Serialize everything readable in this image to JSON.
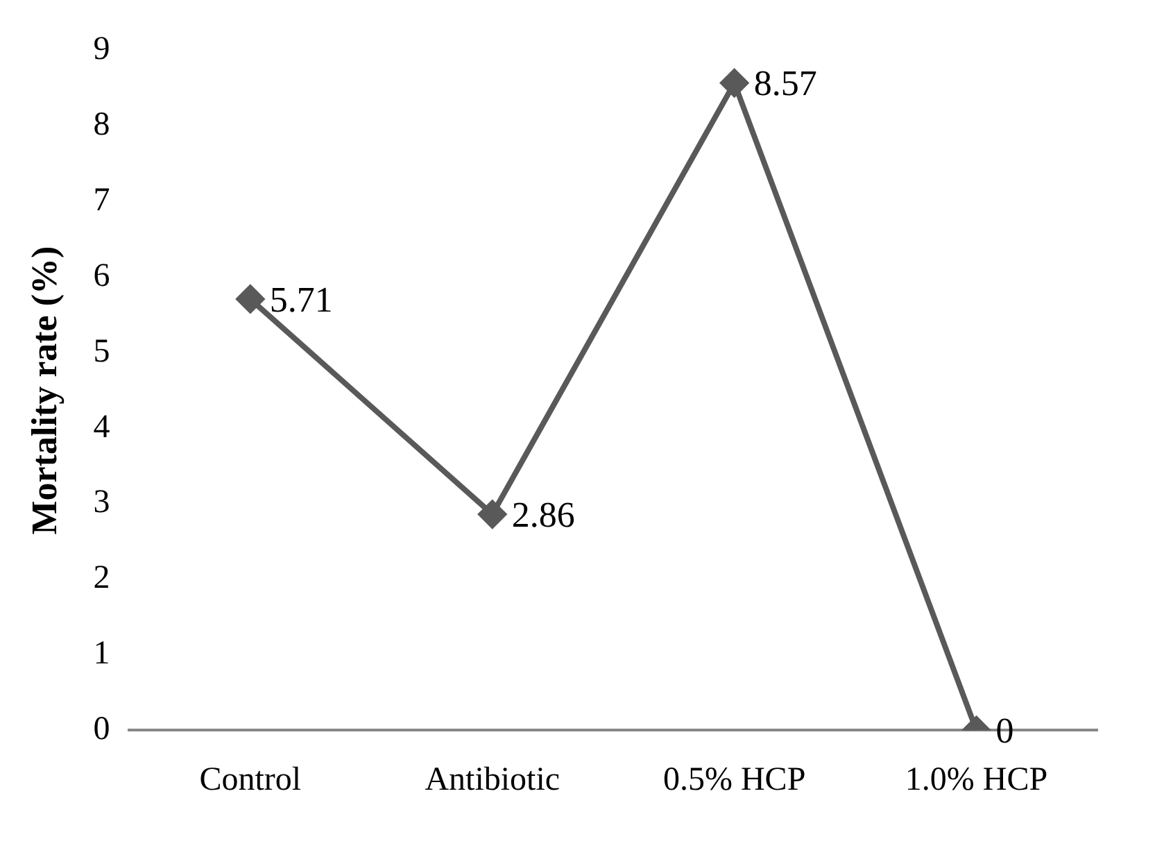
{
  "chart_data": {
    "type": "line",
    "ylabel": "Mortality rate (%)",
    "categories": [
      "Control",
      "Antibiotic",
      "0.5% HCP",
      "1.0% HCP"
    ],
    "series": [
      {
        "color": "#595959",
        "values": [
          5.71,
          2.86,
          8.57,
          0
        ]
      }
    ],
    "ylim": [
      0,
      9
    ],
    "yticks": [
      0,
      1,
      2,
      3,
      4,
      5,
      6,
      7,
      8,
      9
    ],
    "grid": false,
    "legend": false,
    "marker": "diamond",
    "line_style": "solid",
    "data_labels": true
  }
}
